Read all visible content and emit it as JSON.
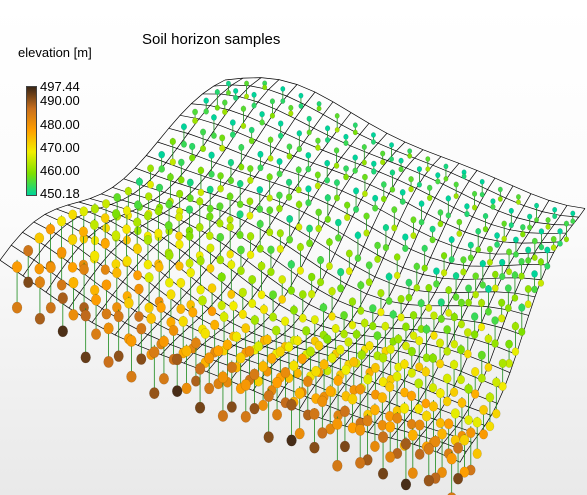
{
  "chart_data": {
    "type": "scatter",
    "title": "Soil horizon samples",
    "colorbar": {
      "label": "elevation [m]",
      "min": 450.18,
      "max": 497.44,
      "ticks": [
        "497.44",
        "490.00",
        "480.00",
        "470.00",
        "460.00",
        "450.18"
      ],
      "tick_values": [
        497.44,
        490.0,
        480.0,
        470.0,
        460.0,
        450.18
      ],
      "colors": [
        "#00d49a",
        "#7ee000",
        "#f2ee00",
        "#ff9f00",
        "#c86f1c",
        "#3a2616"
      ]
    },
    "surface": {
      "rows": 20,
      "cols": 20,
      "kind": "wireframe-terrain"
    },
    "samples": {
      "grid": 20,
      "elevation_range": [
        450.18,
        497.44
      ]
    },
    "colors": {
      "mesh": "#000000",
      "stem": "#1a8a1a",
      "background_top": "#ffffff",
      "background_bottom": "#e9e9e9"
    }
  }
}
